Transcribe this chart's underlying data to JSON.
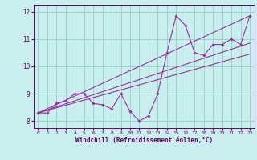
{
  "xlabel": "Windchill (Refroidissement éolien,°C)",
  "bg_color": "#c8eeee",
  "line_color": "#993399",
  "grid_color": "#99cccc",
  "axis_color": "#660066",
  "text_color": "#660066",
  "xlim": [
    -0.5,
    23.5
  ],
  "ylim": [
    7.75,
    12.25
  ],
  "xticks": [
    0,
    1,
    2,
    3,
    4,
    5,
    6,
    7,
    8,
    9,
    10,
    11,
    12,
    13,
    14,
    15,
    16,
    17,
    18,
    19,
    20,
    21,
    22,
    23
  ],
  "yticks": [
    8,
    9,
    10,
    11,
    12
  ],
  "series1_x": [
    0,
    1,
    2,
    3,
    4,
    5,
    6,
    7,
    8,
    9,
    10,
    11,
    12,
    13,
    14,
    15,
    16,
    17,
    18,
    19,
    20,
    21,
    22,
    23
  ],
  "series1_y": [
    8.3,
    8.3,
    8.65,
    8.75,
    9.0,
    9.0,
    8.65,
    8.6,
    8.45,
    9.0,
    8.35,
    8.0,
    8.2,
    9.0,
    10.5,
    11.85,
    11.5,
    10.5,
    10.4,
    10.8,
    10.8,
    11.0,
    10.8,
    11.85
  ],
  "trend1_x": [
    0,
    23
  ],
  "trend1_y": [
    8.3,
    11.85
  ],
  "trend2_x": [
    0,
    23
  ],
  "trend2_y": [
    8.3,
    10.85
  ],
  "trend3_x": [
    0,
    23
  ],
  "trend3_y": [
    8.3,
    10.45
  ]
}
